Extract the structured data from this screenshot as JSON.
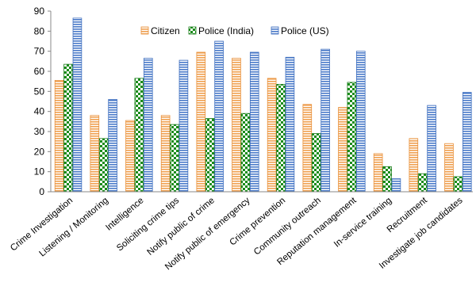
{
  "chart_data": {
    "type": "bar",
    "title": "",
    "xlabel": "",
    "ylabel": "",
    "ylim": [
      0,
      90
    ],
    "yticks": [
      0,
      10,
      20,
      30,
      40,
      50,
      60,
      70,
      80,
      90
    ],
    "grid": false,
    "legend_position": "top",
    "categories": [
      "Crime Investigation",
      "Listening / Monitoring",
      "Intelligence",
      "Soliciting crime tips",
      "Notify public of crime",
      "Notify public of emergency",
      "Crime prevention",
      "Community outreach",
      "Reputation management",
      "In-service training",
      "Recruitment",
      "Investigate job candidates"
    ],
    "series": [
      {
        "name": "Citizen",
        "color": "#f0a050",
        "pattern": "horizontal-stripes",
        "values": [
          55.5,
          38,
          35.5,
          38,
          69.5,
          66.5,
          56.5,
          43.5,
          42,
          19,
          26.5,
          24
        ]
      },
      {
        "name": "Police (India)",
        "color": "#1a8c1a",
        "pattern": "checker",
        "values": [
          63.5,
          26.5,
          56.5,
          33.5,
          36.5,
          39,
          53.5,
          29,
          54.5,
          12.5,
          9,
          7.5
        ]
      },
      {
        "name": "Police (US)",
        "color": "#4a7ac9",
        "pattern": "horizontal-stripes",
        "values": [
          86.5,
          46,
          66.5,
          65.5,
          75,
          69.5,
          67,
          71,
          70,
          6.5,
          43,
          49.5
        ]
      }
    ]
  }
}
